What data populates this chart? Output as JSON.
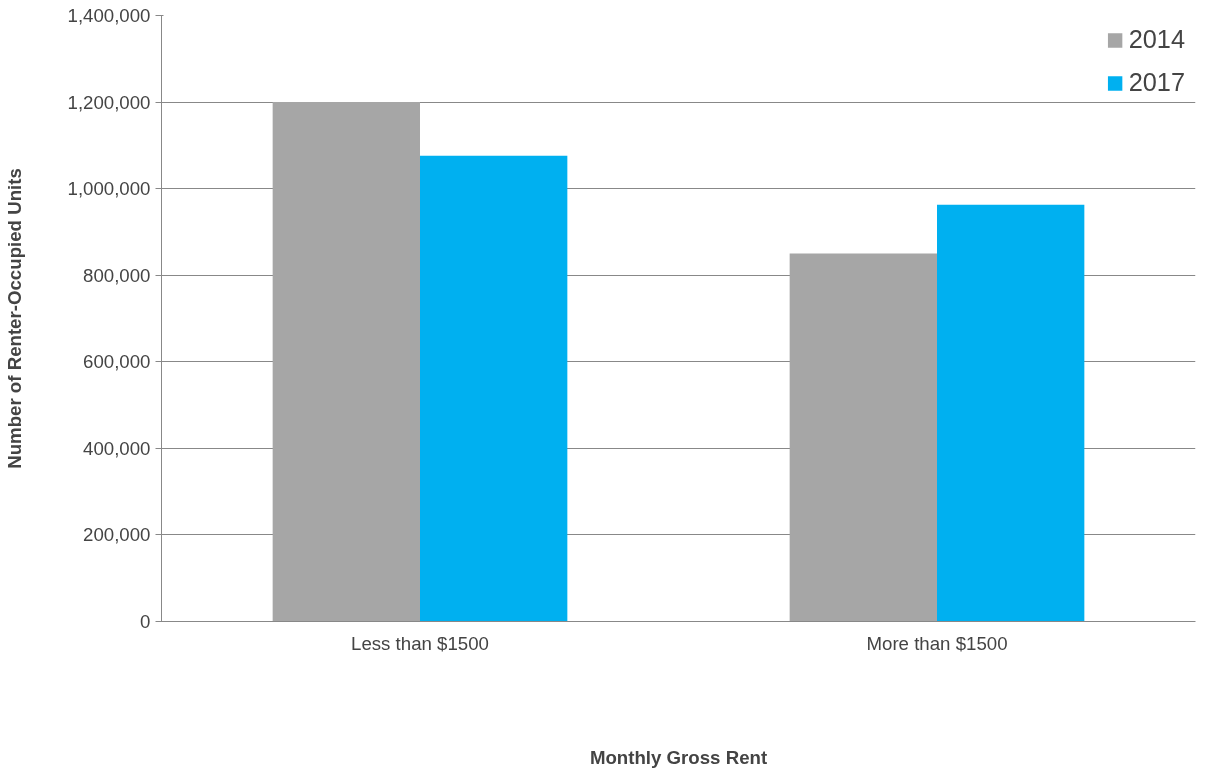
{
  "chart_data": {
    "type": "bar",
    "xlabel": "Monthly Gross Rent",
    "ylabel": "Number of Renter-Occupied Units",
    "categories": [
      "Less than $1500",
      "More than $1500"
    ],
    "series": [
      {
        "name": "2014",
        "color": "#a6a6a6",
        "values": [
          1200000,
          850000
        ]
      },
      {
        "name": "2017",
        "color": "#00b0f0",
        "values": [
          1076000,
          963000
        ]
      }
    ],
    "ylim": [
      0,
      1400000
    ],
    "yticks": [
      {
        "value": 0,
        "label": "0"
      },
      {
        "value": 200000,
        "label": "200,000"
      },
      {
        "value": 400000,
        "label": "400,000"
      },
      {
        "value": 600000,
        "label": "600,000"
      },
      {
        "value": 800000,
        "label": "800,000"
      },
      {
        "value": 1000000,
        "label": "1,000,000"
      },
      {
        "value": 1200000,
        "label": "1,200,000"
      },
      {
        "value": 1400000,
        "label": "1,400,000"
      }
    ],
    "grid": "y",
    "legend": "top right"
  }
}
